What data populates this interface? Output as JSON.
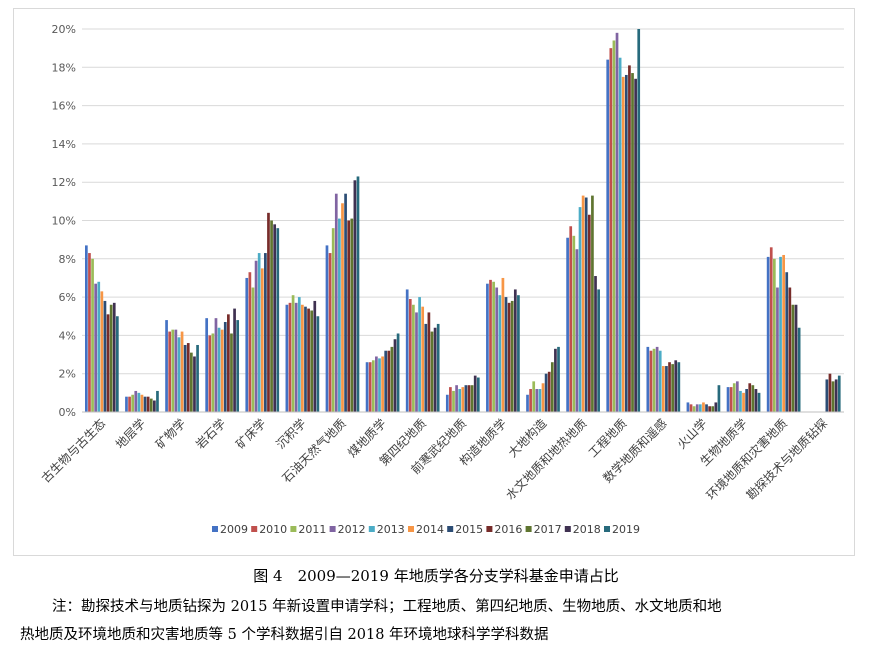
{
  "figure": {
    "caption": "图 4　2009—2019 年地质学各分支学科基金申请占比",
    "note_line1": "注：勘探技术与地质钻探为 2015 年新设置申请学科；工程地质、第四纪地质、生物地质、水文地质和地",
    "note_line2": "热地质及环境地质和灾害地质等 5 个学科数据引自 2018 年环境地球科学学科数据"
  },
  "chart_data": {
    "type": "bar",
    "title": "",
    "xlabel": "",
    "ylabel": "",
    "ylim": [
      0,
      20
    ],
    "y_ticks": [
      "0%",
      "2%",
      "4%",
      "6%",
      "8%",
      "10%",
      "12%",
      "14%",
      "16%",
      "18%",
      "20%"
    ],
    "grid": "horizontal",
    "legend_position": "bottom",
    "colors": [
      "#4472c4",
      "#c0504d",
      "#9bbb59",
      "#8064a2",
      "#4bacc6",
      "#f79646",
      "#2c4d75",
      "#772c2a",
      "#5f7530",
      "#3f3151",
      "#276a7c"
    ],
    "categories": [
      "古生物与古生态",
      "地层学",
      "矿物学",
      "岩石学",
      "矿床学",
      "沉积学",
      "石油天然气地质",
      "煤地质学",
      "第四纪地质",
      "前寒武纪地质",
      "构造地质学",
      "大地构造",
      "水文地质和地热地质",
      "工程地质",
      "数学地质和遥感",
      "火山学",
      "生物地质学",
      "环境地质和灾害地质",
      "勘探技术与地质钻探"
    ],
    "series": [
      {
        "name": "2009",
        "values": [
          8.7,
          0.8,
          4.8,
          4.9,
          7.0,
          5.6,
          8.7,
          2.6,
          6.4,
          0.9,
          6.7,
          0.9,
          9.1,
          18.4,
          3.4,
          0.5,
          1.3,
          8.1,
          null
        ]
      },
      {
        "name": "2010",
        "values": [
          8.3,
          0.8,
          4.2,
          4.0,
          7.3,
          5.7,
          8.3,
          2.6,
          5.9,
          1.3,
          6.9,
          1.2,
          9.7,
          19.0,
          3.2,
          0.4,
          1.3,
          8.6,
          null
        ]
      },
      {
        "name": "2011",
        "values": [
          8.0,
          0.9,
          4.3,
          4.1,
          6.5,
          6.1,
          9.6,
          2.7,
          5.6,
          1.1,
          6.8,
          1.6,
          9.2,
          19.4,
          3.3,
          0.3,
          1.5,
          8.0,
          null
        ]
      },
      {
        "name": "2012",
        "values": [
          6.7,
          1.1,
          4.3,
          4.9,
          7.9,
          5.7,
          11.4,
          2.9,
          5.2,
          1.4,
          6.5,
          1.2,
          8.5,
          19.8,
          3.4,
          0.4,
          1.6,
          6.5,
          null
        ]
      },
      {
        "name": "2013",
        "values": [
          6.8,
          1.0,
          3.9,
          4.4,
          8.3,
          6.0,
          10.1,
          2.8,
          6.0,
          1.2,
          6.1,
          1.2,
          10.7,
          18.5,
          3.2,
          0.4,
          1.1,
          8.1,
          null
        ]
      },
      {
        "name": "2014",
        "values": [
          6.3,
          0.9,
          4.2,
          4.3,
          7.5,
          5.6,
          10.9,
          2.9,
          5.5,
          1.3,
          7.0,
          1.5,
          11.3,
          17.5,
          2.4,
          0.5,
          1.0,
          8.2,
          null
        ]
      },
      {
        "name": "2015",
        "values": [
          5.8,
          0.8,
          3.5,
          4.7,
          8.3,
          5.5,
          11.4,
          3.2,
          4.6,
          1.4,
          6.0,
          2.0,
          11.2,
          17.6,
          2.4,
          0.4,
          1.2,
          7.3,
          1.7
        ]
      },
      {
        "name": "2016",
        "values": [
          5.1,
          0.8,
          3.6,
          5.1,
          10.4,
          5.4,
          10.0,
          3.2,
          5.2,
          1.4,
          5.7,
          2.1,
          10.3,
          18.1,
          2.6,
          0.3,
          1.5,
          6.5,
          2.0
        ]
      },
      {
        "name": "2017",
        "values": [
          5.6,
          0.7,
          3.1,
          4.1,
          10.0,
          5.3,
          10.1,
          3.4,
          4.2,
          1.4,
          5.8,
          2.6,
          11.3,
          17.7,
          2.5,
          0.3,
          1.4,
          5.6,
          1.6
        ]
      },
      {
        "name": "2018",
        "values": [
          5.7,
          0.6,
          2.9,
          5.4,
          9.8,
          5.8,
          12.1,
          3.8,
          4.4,
          1.9,
          6.4,
          3.3,
          7.1,
          17.4,
          2.7,
          0.5,
          1.2,
          5.6,
          1.7
        ]
      },
      {
        "name": "2019",
        "values": [
          5.0,
          1.1,
          3.5,
          4.8,
          9.6,
          5.0,
          12.3,
          4.1,
          4.6,
          1.8,
          6.1,
          3.4,
          6.4,
          20.0,
          2.6,
          1.4,
          1.0,
          4.4,
          1.9
        ]
      }
    ]
  }
}
